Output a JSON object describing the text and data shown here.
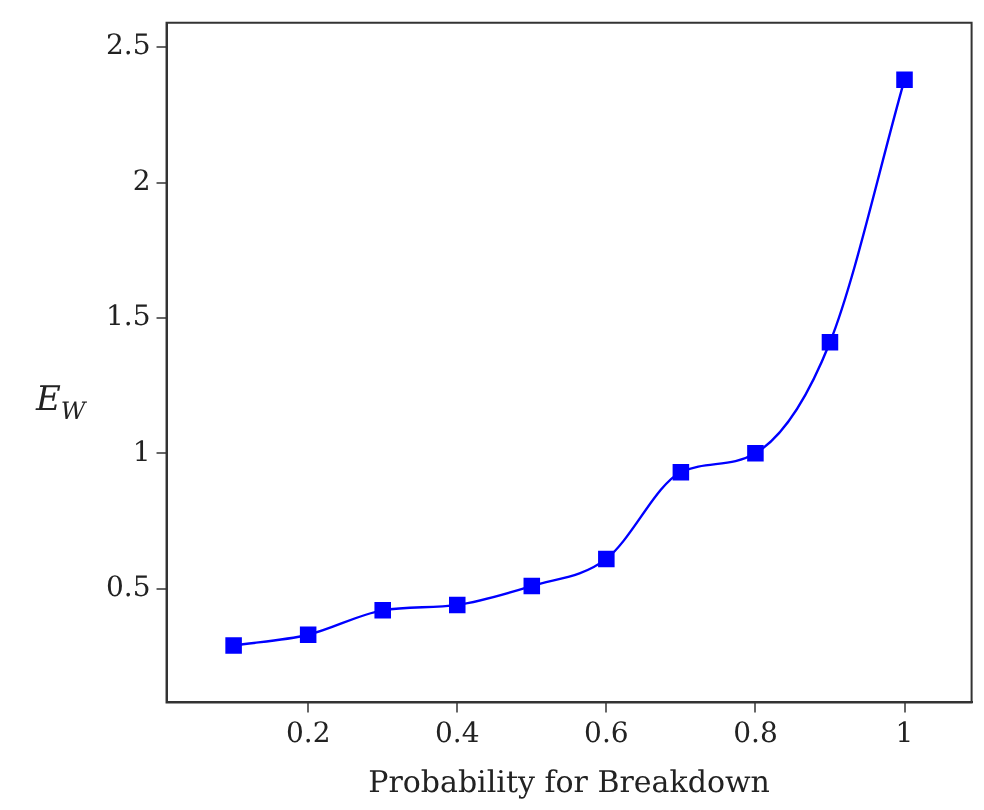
{
  "chart_data": {
    "type": "line",
    "xlabel": "Probability for Breakdown",
    "ylabel": "E$_{W}$",
    "x": [
      0.1,
      0.2,
      0.3,
      0.4,
      0.5,
      0.6,
      0.7,
      0.8,
      0.9,
      1.0
    ],
    "series": [
      {
        "color": "#0000ff",
        "values": [
          0.29,
          0.33,
          0.42,
          0.44,
          0.51,
          0.61,
          0.93,
          1.0,
          1.41,
          2.38
        ]
      }
    ],
    "xlim": [
      0.01,
      1.09
    ],
    "ylim": [
      0.08,
      2.59
    ],
    "xticks": [
      0.2,
      0.4,
      0.6,
      0.8,
      1
    ],
    "yticks": [
      0.5,
      1,
      1.5,
      2,
      2.5
    ],
    "grid": false,
    "legend": false,
    "marker": "square",
    "line_style": "solid"
  }
}
